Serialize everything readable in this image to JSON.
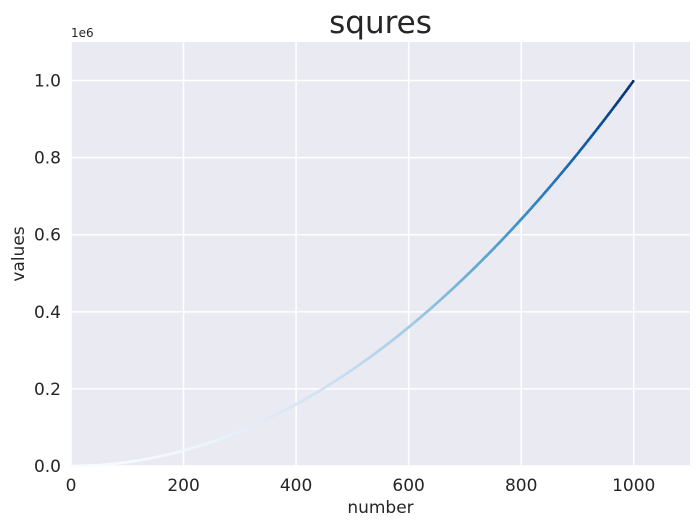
{
  "chart_data": {
    "type": "scatter",
    "title": "squres",
    "xlabel": "number",
    "ylabel": "values",
    "xlim": [
      0,
      1100
    ],
    "ylim": [
      0,
      1100000
    ],
    "x_ticks": [
      "0",
      "200",
      "400",
      "600",
      "800",
      "1000"
    ],
    "y_ticks": [
      "0.0",
      "0.2",
      "0.4",
      "0.6",
      "0.8",
      "1.0"
    ],
    "y_offset_label": "1e6",
    "grid": true,
    "colormap": "Blues",
    "series": [
      {
        "x_start": 1,
        "x_end": 1000,
        "relation": "y = x^2"
      }
    ],
    "colors": {
      "background": "#eaeaf2",
      "grid": "#ffffff",
      "low": "#f7fbff",
      "high": "#08306b"
    }
  }
}
